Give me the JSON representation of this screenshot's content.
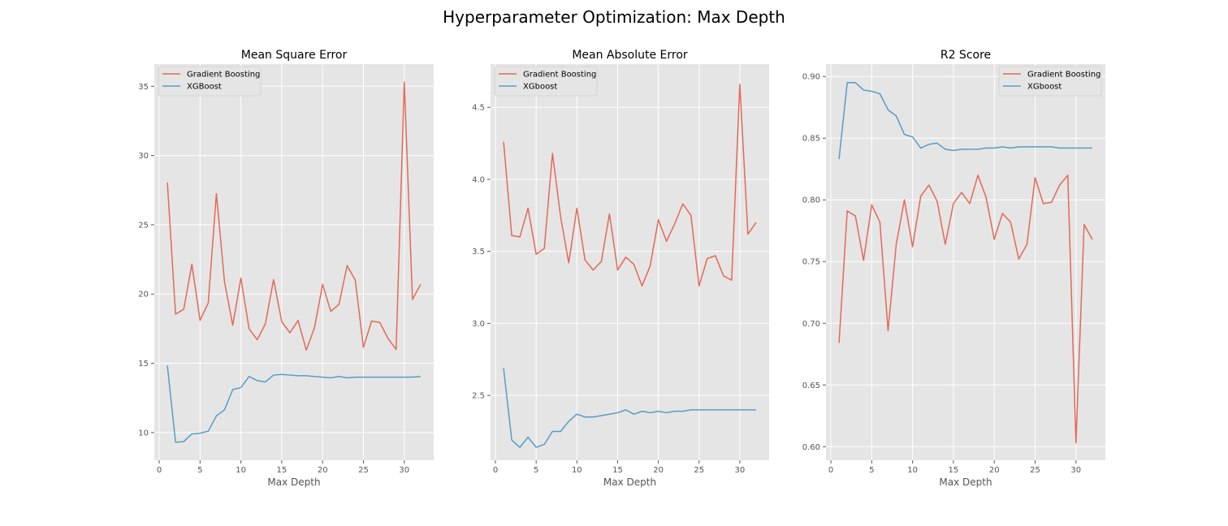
{
  "figure": {
    "suptitle": "Hyperparameter Optimization: Max Depth",
    "colors": {
      "gradient_boosting": "#E24A33",
      "xgboost": "#348ABD",
      "panel_bg": "#E5E5E5",
      "grid": "#FFFFFF",
      "tick_text": "#555555"
    }
  },
  "chart_data": [
    {
      "type": "line",
      "title": "Mean Square Error",
      "xlabel": "Max Depth",
      "ylabel": "",
      "xlim": [
        -0.6,
        33.6
      ],
      "ylim": [
        8,
        36.6
      ],
      "xticks": [
        0,
        5,
        10,
        15,
        20,
        25,
        30
      ],
      "yticks": [
        10,
        15,
        20,
        25,
        30,
        35
      ],
      "ytick_labels": [
        "10",
        "15",
        "20",
        "25",
        "30",
        "35"
      ],
      "grid": true,
      "legend": "upper left",
      "x": [
        1,
        2,
        3,
        4,
        5,
        6,
        7,
        8,
        9,
        10,
        11,
        12,
        13,
        14,
        15,
        16,
        17,
        18,
        19,
        20,
        21,
        22,
        23,
        24,
        25,
        26,
        27,
        28,
        29,
        30,
        31,
        32
      ],
      "series": [
        {
          "name": "Gradient Boosting",
          "values": [
            28.05,
            18.55,
            18.9,
            22.15,
            18.1,
            19.35,
            27.25,
            20.85,
            17.75,
            21.15,
            17.5,
            16.7,
            17.85,
            21.05,
            18.0,
            17.2,
            18.1,
            15.95,
            17.55,
            20.7,
            18.75,
            19.25,
            22.05,
            21.0,
            16.15,
            18.05,
            17.95,
            16.8,
            16.0,
            35.3,
            19.6,
            20.7
          ]
        },
        {
          "name": "XGBoost",
          "values": [
            14.85,
            9.3,
            9.35,
            9.9,
            9.95,
            10.1,
            11.2,
            11.65,
            13.1,
            13.25,
            14.05,
            13.75,
            13.65,
            14.15,
            14.2,
            14.15,
            14.1,
            14.1,
            14.05,
            14.0,
            13.95,
            14.05,
            13.95,
            14.0,
            14.0,
            14.0,
            14.0,
            14.0,
            14.0,
            14.0,
            14.0,
            14.05
          ]
        }
      ]
    },
    {
      "type": "line",
      "title": "Mean Absolute Error",
      "xlabel": "Max Depth",
      "ylabel": "",
      "xlim": [
        -0.6,
        33.6
      ],
      "ylim": [
        2.05,
        4.8
      ],
      "xticks": [
        0,
        5,
        10,
        15,
        20,
        25,
        30
      ],
      "yticks": [
        2.5,
        3.0,
        3.5,
        4.0,
        4.5
      ],
      "ytick_labels": [
        "2.5",
        "3.0",
        "3.5",
        "4.0",
        "4.5"
      ],
      "grid": true,
      "legend": "upper left",
      "x": [
        1,
        2,
        3,
        4,
        5,
        6,
        7,
        8,
        9,
        10,
        11,
        12,
        13,
        14,
        15,
        16,
        17,
        18,
        19,
        20,
        21,
        22,
        23,
        24,
        25,
        26,
        27,
        28,
        29,
        30,
        31,
        32
      ],
      "series": [
        {
          "name": "Gradient Boosting",
          "values": [
            4.26,
            3.61,
            3.6,
            3.8,
            3.48,
            3.52,
            4.18,
            3.74,
            3.42,
            3.8,
            3.44,
            3.37,
            3.43,
            3.76,
            3.37,
            3.46,
            3.41,
            3.26,
            3.4,
            3.72,
            3.57,
            3.69,
            3.83,
            3.75,
            3.26,
            3.45,
            3.47,
            3.33,
            3.3,
            4.66,
            3.62,
            3.7
          ]
        },
        {
          "name": "XGboost",
          "values": [
            2.69,
            2.19,
            2.14,
            2.21,
            2.14,
            2.16,
            2.25,
            2.25,
            2.32,
            2.37,
            2.35,
            2.35,
            2.36,
            2.37,
            2.38,
            2.4,
            2.37,
            2.39,
            2.38,
            2.39,
            2.38,
            2.39,
            2.39,
            2.4,
            2.4,
            2.4,
            2.4,
            2.4,
            2.4,
            2.4,
            2.4,
            2.4
          ]
        }
      ]
    },
    {
      "type": "line",
      "title": "R2 Score",
      "xlabel": "Max Depth",
      "ylabel": "",
      "xlim": [
        -0.6,
        33.6
      ],
      "ylim": [
        0.589,
        0.91
      ],
      "xticks": [
        0,
        5,
        10,
        15,
        20,
        25,
        30
      ],
      "yticks": [
        0.6,
        0.65,
        0.7,
        0.75,
        0.8,
        0.85,
        0.9
      ],
      "ytick_labels": [
        "0.60",
        "0.65",
        "0.70",
        "0.75",
        "0.80",
        "0.85",
        "0.90"
      ],
      "grid": true,
      "legend": "upper right",
      "x": [
        1,
        2,
        3,
        4,
        5,
        6,
        7,
        8,
        9,
        10,
        11,
        12,
        13,
        14,
        15,
        16,
        17,
        18,
        19,
        20,
        21,
        22,
        23,
        24,
        25,
        26,
        27,
        28,
        29,
        30,
        31,
        32
      ],
      "series": [
        {
          "name": "Gradient Boosting",
          "values": [
            0.684,
            0.791,
            0.787,
            0.751,
            0.796,
            0.782,
            0.694,
            0.764,
            0.8,
            0.762,
            0.803,
            0.812,
            0.799,
            0.764,
            0.797,
            0.806,
            0.797,
            0.82,
            0.802,
            0.768,
            0.789,
            0.782,
            0.752,
            0.764,
            0.818,
            0.797,
            0.798,
            0.812,
            0.82,
            0.603,
            0.78,
            0.768
          ]
        },
        {
          "name": "XGboost",
          "values": [
            0.833,
            0.895,
            0.895,
            0.889,
            0.888,
            0.886,
            0.873,
            0.868,
            0.853,
            0.851,
            0.842,
            0.845,
            0.846,
            0.841,
            0.84,
            0.841,
            0.841,
            0.841,
            0.842,
            0.842,
            0.843,
            0.842,
            0.843,
            0.843,
            0.843,
            0.843,
            0.843,
            0.842,
            0.842,
            0.842,
            0.842,
            0.842
          ]
        }
      ]
    }
  ]
}
